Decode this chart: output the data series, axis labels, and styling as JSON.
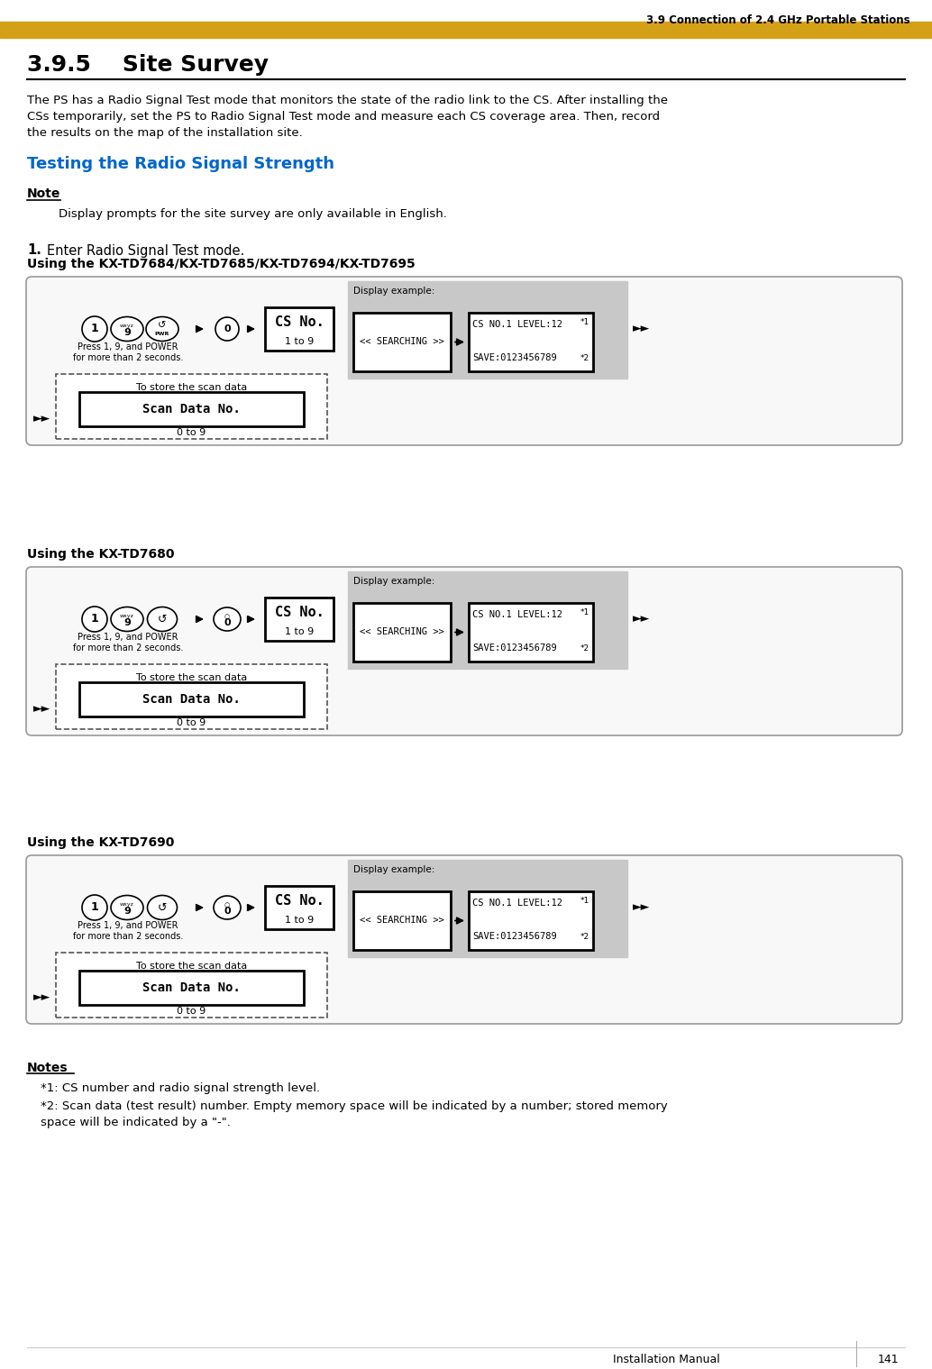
{
  "header_text": "3.9 Connection of 2.4 GHz Portable Stations",
  "header_bar_color": "#D4A017",
  "section_number": "3.9.5",
  "section_title": "Site Survey",
  "body_text": "The PS has a Radio Signal Test mode that monitors the state of the radio link to the CS. After installing the\nCSs temporarily, set the PS to Radio Signal Test mode and measure each CS coverage area. Then, record\nthe results on the map of the installation site.",
  "blue_heading": "Testing the Radio Signal Strength",
  "note_label": "Note",
  "note_text": "Display prompts for the site survey are only available in English.",
  "box1_label": "Using the KX-TD7684/KX-TD7685/KX-TD7694/KX-TD7695",
  "box2_label": "Using the KX-TD7680",
  "box3_label": "Using the KX-TD7690",
  "press_text": "Press 1, 9, and POWER\nfor more than 2 seconds.",
  "cs_no_label": "CS No.",
  "cs_no_range": "1 to 9",
  "display_example": "Display example:",
  "searching_text": "<< SEARCHING >>",
  "display_line1": "CS NO.1 LEVEL:12",
  "display_line2": "SAVE:0123456789",
  "star1": "*1",
  "star2": "*2",
  "scan_data_label": "To store the scan data",
  "scan_data_box": "Scan Data No.",
  "scan_data_range": "0 to 9",
  "notes_title": "Notes",
  "note1": "*1: CS number and radio signal strength level.",
  "note2": "*2: Scan data (test result) number. Empty memory space will be indicated by a number; stored memory",
  "note2b": "        space will be indicated by a \"-\".",
  "footer_text": "Installation Manual",
  "footer_page": "141",
  "bg_color": "#ffffff",
  "display_bg": "#c8c8c8",
  "text_color": "#000000",
  "blue_color": "#0066CC"
}
